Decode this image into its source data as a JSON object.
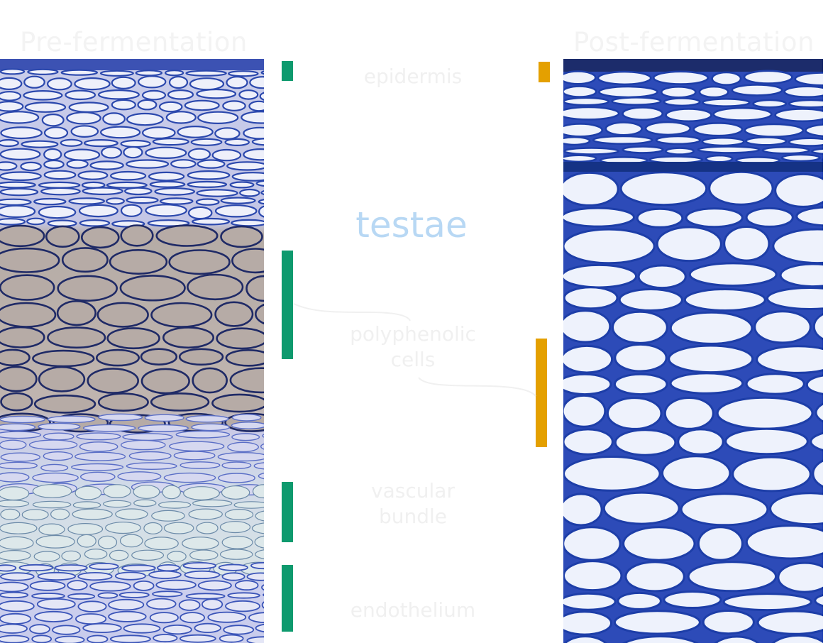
{
  "headings": {
    "left": "Pre-fermentation",
    "right": "Post-fermentation"
  },
  "title": "testae",
  "labels": {
    "epidermis": "epidermis",
    "polyphenolic_line1": "polyphenolic",
    "polyphenolic_line2": "cells",
    "vascular_line1": "vascular",
    "vascular_line2": "bundle",
    "endothelium": "endothelium"
  },
  "colors": {
    "pre_bar": "#0e9a6e",
    "post_bar": "#e4a000",
    "title": "#b8d8f4",
    "stain_dark": "#1b3fa8",
    "stain_light": "#eef0fa",
    "polyphenol": "#b8a9a0"
  }
}
